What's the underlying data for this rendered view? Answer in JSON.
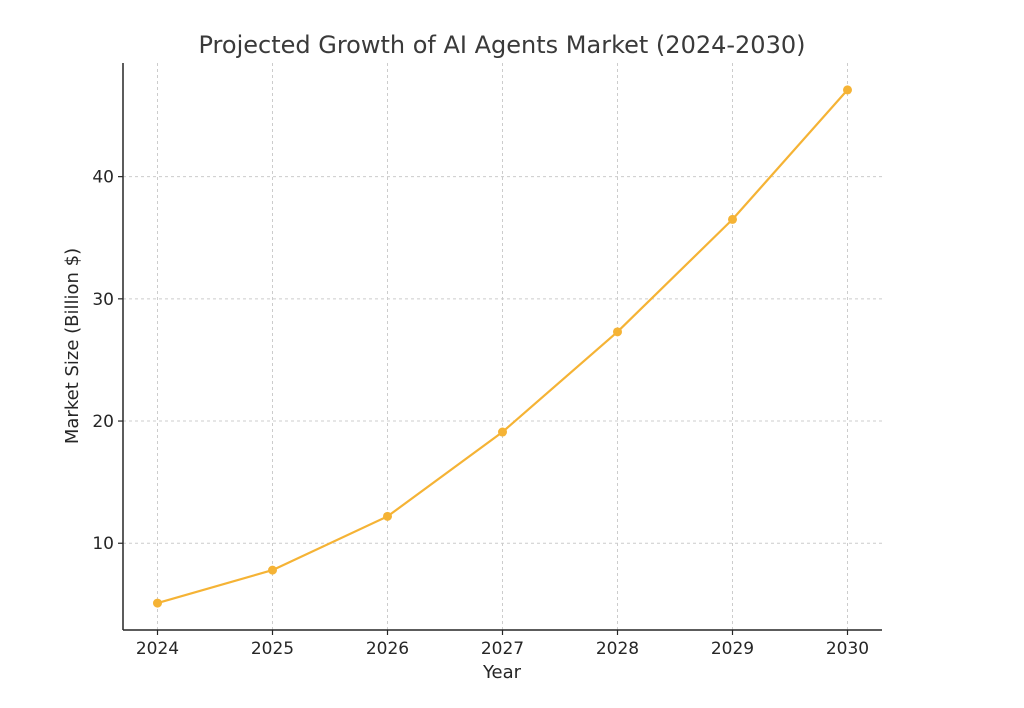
{
  "chart_data": {
    "type": "line",
    "title": "Projected Growth of AI Agents Market (2024-2030)",
    "xlabel": "Year",
    "ylabel": "Market Size (Billion $)",
    "x": [
      2024,
      2025,
      2026,
      2027,
      2028,
      2029,
      2030
    ],
    "series": [
      {
        "values": [
          5.1,
          7.8,
          12.2,
          19.1,
          27.3,
          36.5,
          47.1
        ],
        "color": "#f5b335"
      }
    ],
    "xlim": [
      2023.7,
      2030.3
    ],
    "ylim": [
      2.9,
      49.3
    ],
    "xticks": [
      2024,
      2025,
      2026,
      2027,
      2028,
      2029,
      2030
    ],
    "xtick_labels": [
      "2024",
      "2025",
      "2026",
      "2027",
      "2028",
      "2029",
      "2030"
    ],
    "yticks": [
      10,
      20,
      30,
      40
    ],
    "ytick_labels": [
      "10",
      "20",
      "30",
      "40"
    ],
    "grid": true,
    "legend": "none",
    "marker": "circle"
  }
}
